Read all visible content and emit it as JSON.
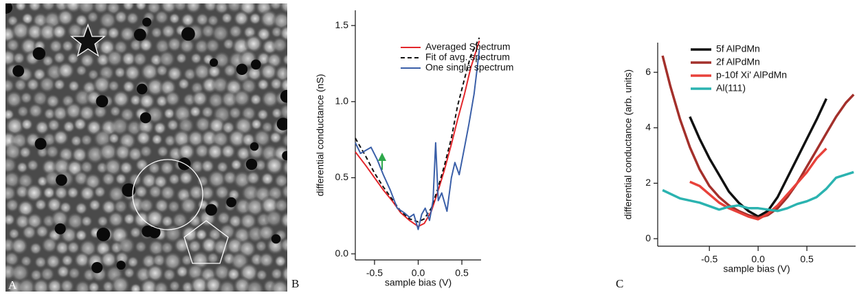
{
  "panels": [
    "A",
    "B",
    "C"
  ],
  "chart_data": [
    {
      "type": "line",
      "x_label": "sample bias (V)",
      "y_label": "differential conductance (nS)",
      "xlim": [
        -0.72,
        0.72
      ],
      "xticks": [
        -0.5,
        {
          "value": 0,
          "label": "0.0"
        },
        0.5
      ],
      "ylim": [
        -0.04,
        1.6
      ],
      "yticks": [
        {
          "value": 0,
          "label": "0.0"
        },
        0.5,
        {
          "value": 1,
          "label": "1.0"
        },
        1.5
      ],
      "legend": "upper center",
      "series": [
        {
          "name": "Averaged Spectrum",
          "color": "#e3262b",
          "dash": false,
          "x": [
            -0.72,
            -0.6,
            -0.5,
            -0.4,
            -0.3,
            -0.2,
            -0.1,
            0,
            0.07,
            0.15,
            0.22,
            0.3,
            0.38,
            0.45,
            0.53,
            0.6,
            0.7
          ],
          "values": [
            0.67,
            0.58,
            0.5,
            0.42,
            0.35,
            0.27,
            0.22,
            0.18,
            0.2,
            0.28,
            0.4,
            0.55,
            0.72,
            0.88,
            1.05,
            1.22,
            1.4
          ]
        },
        {
          "name": "Fit of avg. spectrum",
          "color": "#111111",
          "dash": true,
          "x": [
            -0.72,
            -0.6,
            -0.5,
            -0.4,
            -0.3,
            -0.2,
            -0.1,
            0,
            0.07,
            0.15,
            0.22,
            0.3,
            0.38,
            0.45,
            0.53,
            0.6,
            0.7
          ],
          "values": [
            0.76,
            0.64,
            0.53,
            0.44,
            0.36,
            0.28,
            0.23,
            0.21,
            0.23,
            0.3,
            0.42,
            0.58,
            0.76,
            0.97,
            1.15,
            1.3,
            1.42
          ]
        },
        {
          "name": "One single spectrum",
          "color": "#3a5fa8",
          "dash": false,
          "x": [
            -0.72,
            -0.66,
            -0.6,
            -0.54,
            -0.47,
            -0.4,
            -0.32,
            -0.24,
            -0.16,
            -0.1,
            -0.05,
            0,
            0.04,
            0.08,
            0.13,
            0.17,
            0.2,
            0.23,
            0.27,
            0.33,
            0.38,
            0.42,
            0.47,
            0.53,
            0.58,
            0.64,
            0.7
          ],
          "values": [
            0.73,
            0.66,
            0.68,
            0.7,
            0.62,
            0.52,
            0.42,
            0.3,
            0.27,
            0.24,
            0.26,
            0.16,
            0.26,
            0.3,
            0.22,
            0.35,
            0.73,
            0.35,
            0.4,
            0.28,
            0.5,
            0.6,
            0.52,
            0.7,
            0.85,
            1.05,
            1.34
          ]
        }
      ]
    },
    {
      "type": "line",
      "x_label": "sample bias (V)",
      "y_label": "differential conductance (arb. units)",
      "xlim": [
        -1.03,
        1.0
      ],
      "xticks": [
        -0.5,
        {
          "value": 0,
          "label": "0.0"
        },
        0.5
      ],
      "ylim": [
        -0.27,
        7.07
      ],
      "yticks": [
        0,
        2,
        4,
        6
      ],
      "legend": "upper left",
      "series": [
        {
          "name": "5f AlPdMn",
          "color": "#111111",
          "dash": false,
          "x": [
            -0.7,
            -0.6,
            -0.5,
            -0.4,
            -0.3,
            -0.2,
            -0.1,
            0,
            0.1,
            0.2,
            0.3,
            0.4,
            0.5,
            0.6,
            0.7
          ],
          "values": [
            4.4,
            3.6,
            2.9,
            2.3,
            1.7,
            1.3,
            1.0,
            0.8,
            1.0,
            1.5,
            2.2,
            2.9,
            3.6,
            4.3,
            5.05
          ]
        },
        {
          "name": "2f AlPdMn",
          "color": "#a3302b",
          "dash": false,
          "x": [
            -0.98,
            -0.9,
            -0.8,
            -0.7,
            -0.6,
            -0.5,
            -0.4,
            -0.3,
            -0.2,
            -0.1,
            0,
            0.1,
            0.2,
            0.3,
            0.4,
            0.5,
            0.6,
            0.7,
            0.8,
            0.9,
            0.98
          ],
          "values": [
            6.6,
            5.5,
            4.3,
            3.3,
            2.5,
            1.9,
            1.5,
            1.2,
            1.0,
            0.85,
            0.75,
            0.85,
            1.1,
            1.5,
            2.0,
            2.6,
            3.2,
            3.8,
            4.4,
            4.9,
            5.2
          ]
        },
        {
          "name": "p-10f Xi' AlPdMn",
          "color": "#e8413a",
          "dash": false,
          "x": [
            -0.7,
            -0.6,
            -0.5,
            -0.4,
            -0.3,
            -0.2,
            -0.1,
            0,
            0.1,
            0.2,
            0.3,
            0.4,
            0.5,
            0.6,
            0.7
          ],
          "values": [
            2.05,
            1.9,
            1.6,
            1.3,
            1.1,
            0.95,
            0.8,
            0.7,
            0.9,
            1.2,
            1.6,
            2.0,
            2.4,
            2.9,
            3.25
          ]
        },
        {
          "name": "Al(111)",
          "color": "#2bb3b0",
          "dash": false,
          "x": [
            -0.98,
            -0.8,
            -0.6,
            -0.4,
            -0.3,
            -0.2,
            -0.1,
            0,
            0.1,
            0.2,
            0.3,
            0.4,
            0.5,
            0.6,
            0.7,
            0.8,
            0.98
          ],
          "values": [
            1.75,
            1.45,
            1.3,
            1.05,
            1.15,
            1.2,
            1.1,
            1.1,
            1.05,
            1.0,
            1.1,
            1.25,
            1.35,
            1.5,
            1.8,
            2.2,
            2.4
          ]
        }
      ]
    }
  ]
}
